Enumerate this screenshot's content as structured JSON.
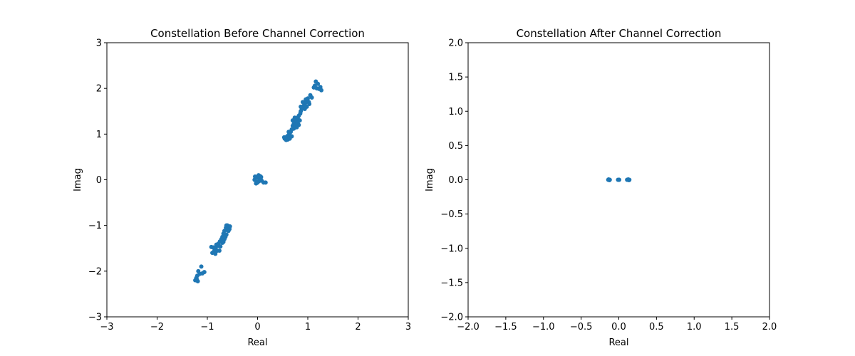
{
  "colors": {
    "marker": "#1f77b4",
    "background": "#ffffff",
    "axes": "#000000"
  },
  "chart_data": [
    {
      "type": "scatter",
      "title": "Constellation Before Channel Correction",
      "xlabel": "Real",
      "ylabel": "Imag",
      "xlim": [
        -3,
        3
      ],
      "ylim": [
        -3,
        3
      ],
      "xticks": [
        -3,
        -2,
        -1,
        0,
        1,
        2,
        3
      ],
      "yticks": [
        -3,
        -2,
        -1,
        0,
        1,
        2,
        3
      ],
      "xtick_labels": [
        "−3",
        "−2",
        "−1",
        "0",
        "1",
        "2",
        "3"
      ],
      "ytick_labels": [
        "−3",
        "−2",
        "−1",
        "0",
        "1",
        "2",
        "3"
      ],
      "grid": false,
      "series": [
        {
          "points": [
            [
              1.16,
              2.15
            ],
            [
              1.2,
              2.1
            ],
            [
              1.25,
              2.03
            ],
            [
              1.27,
              1.96
            ],
            [
              1.12,
              2.02
            ],
            [
              1.18,
              2.0
            ],
            [
              1.22,
              1.99
            ],
            [
              1.14,
              2.06
            ],
            [
              1.05,
              1.85
            ],
            [
              1.0,
              1.78
            ],
            [
              0.98,
              1.72
            ],
            [
              1.02,
              1.7
            ],
            [
              0.95,
              1.68
            ],
            [
              0.92,
              1.62
            ],
            [
              0.9,
              1.58
            ],
            [
              0.88,
              1.55
            ],
            [
              0.94,
              1.55
            ],
            [
              0.98,
              1.6
            ],
            [
              1.03,
              1.66
            ],
            [
              0.86,
              1.5
            ],
            [
              0.85,
              1.45
            ],
            [
              0.82,
              1.4
            ],
            [
              0.8,
              1.36
            ],
            [
              0.78,
              1.32
            ],
            [
              0.76,
              1.3
            ],
            [
              0.74,
              1.26
            ],
            [
              0.72,
              1.22
            ],
            [
              0.7,
              1.18
            ],
            [
              0.75,
              1.2
            ],
            [
              0.8,
              1.25
            ],
            [
              0.84,
              1.3
            ],
            [
              0.82,
              1.2
            ],
            [
              0.78,
              1.15
            ],
            [
              0.72,
              1.12
            ],
            [
              0.68,
              1.1
            ],
            [
              0.66,
              1.05
            ],
            [
              0.64,
              1.02
            ],
            [
              0.62,
              0.98
            ],
            [
              0.6,
              0.96
            ],
            [
              0.58,
              0.94
            ],
            [
              0.56,
              0.92
            ],
            [
              0.54,
              0.9
            ],
            [
              0.6,
              0.88
            ],
            [
              0.64,
              0.9
            ],
            [
              0.68,
              0.95
            ],
            [
              0.62,
              1.05
            ],
            [
              0.7,
              1.3
            ],
            [
              0.74,
              1.36
            ],
            [
              0.9,
              1.7
            ],
            [
              0.96,
              1.76
            ],
            [
              1.08,
              1.8
            ],
            [
              0.86,
              1.6
            ],
            [
              0.57,
              0.87
            ],
            [
              0.53,
              0.93
            ],
            [
              0.05,
              0.08
            ],
            [
              0.0,
              0.05
            ],
            [
              -0.04,
              0.04
            ],
            [
              -0.06,
              0.0
            ],
            [
              -0.02,
              -0.04
            ],
            [
              0.03,
              -0.03
            ],
            [
              0.06,
              0.02
            ],
            [
              0.08,
              -0.02
            ],
            [
              0.12,
              -0.06
            ],
            [
              0.16,
              -0.06
            ],
            [
              -0.03,
              -0.08
            ],
            [
              0.02,
              0.1
            ],
            [
              0.0,
              -0.06
            ],
            [
              0.04,
              0.0
            ],
            [
              -0.05,
              0.07
            ],
            [
              0.07,
              0.06
            ],
            [
              -0.6,
              -1.0
            ],
            [
              -0.58,
              -1.05
            ],
            [
              -0.56,
              -1.08
            ],
            [
              -0.6,
              -1.1
            ],
            [
              -0.63,
              -1.05
            ],
            [
              -0.66,
              -1.12
            ],
            [
              -0.68,
              -1.18
            ],
            [
              -0.62,
              -1.2
            ],
            [
              -0.7,
              -1.25
            ],
            [
              -0.72,
              -1.3
            ],
            [
              -0.66,
              -1.3
            ],
            [
              -0.75,
              -1.35
            ],
            [
              -0.7,
              -1.38
            ],
            [
              -0.78,
              -1.4
            ],
            [
              -0.8,
              -1.45
            ],
            [
              -0.74,
              -1.46
            ],
            [
              -0.84,
              -1.5
            ],
            [
              -0.86,
              -1.55
            ],
            [
              -0.8,
              -1.55
            ],
            [
              -0.88,
              -1.48
            ],
            [
              -0.92,
              -1.47
            ],
            [
              -0.9,
              -1.6
            ],
            [
              -0.84,
              -1.62
            ],
            [
              -0.76,
              -1.55
            ],
            [
              -0.68,
              -1.36
            ],
            [
              -0.64,
              -1.25
            ],
            [
              -0.58,
              -1.12
            ],
            [
              -0.55,
              -1.02
            ],
            [
              -0.62,
              -1.0
            ],
            [
              -0.82,
              -1.42
            ],
            [
              -1.12,
              -1.9
            ],
            [
              -1.1,
              -2.05
            ],
            [
              -1.15,
              -2.06
            ],
            [
              -1.18,
              -2.0
            ],
            [
              -1.2,
              -2.1
            ],
            [
              -1.22,
              -2.15
            ],
            [
              -1.24,
              -2.2
            ],
            [
              -1.19,
              -2.22
            ],
            [
              -1.21,
              -2.18
            ],
            [
              -1.06,
              -2.02
            ]
          ]
        }
      ]
    },
    {
      "type": "scatter",
      "title": "Constellation After Channel Correction",
      "xlabel": "Real",
      "ylabel": "Imag",
      "xlim": [
        -2,
        2
      ],
      "ylim": [
        -2,
        2
      ],
      "xticks": [
        -2,
        -1.5,
        -1,
        -0.5,
        0,
        0.5,
        1,
        1.5,
        2
      ],
      "yticks": [
        -2,
        -1.5,
        -1,
        -0.5,
        0,
        0.5,
        1,
        1.5,
        2
      ],
      "xtick_labels": [
        "−2.0",
        "−1.5",
        "−1.0",
        "−0.5",
        "0.0",
        "0.5",
        "1.0",
        "1.5",
        "2.0"
      ],
      "ytick_labels": [
        "−2.0",
        "−1.5",
        "−1.0",
        "−0.5",
        "0.0",
        "0.5",
        "1.0",
        "1.5",
        "2.0"
      ],
      "grid": false,
      "series": [
        {
          "points": [
            [
              -0.14,
              0.0
            ],
            [
              -0.13,
              0.0
            ],
            [
              -0.12,
              0.0
            ],
            [
              -0.135,
              0.005
            ],
            [
              -0.125,
              -0.005
            ],
            [
              -0.01,
              0.0
            ],
            [
              0.0,
              0.0
            ],
            [
              0.005,
              0.0
            ],
            [
              0.11,
              0.0
            ],
            [
              0.12,
              0.0
            ],
            [
              0.13,
              0.0
            ],
            [
              0.14,
              0.0
            ],
            [
              0.125,
              0.005
            ],
            [
              0.135,
              -0.005
            ]
          ]
        }
      ]
    }
  ]
}
